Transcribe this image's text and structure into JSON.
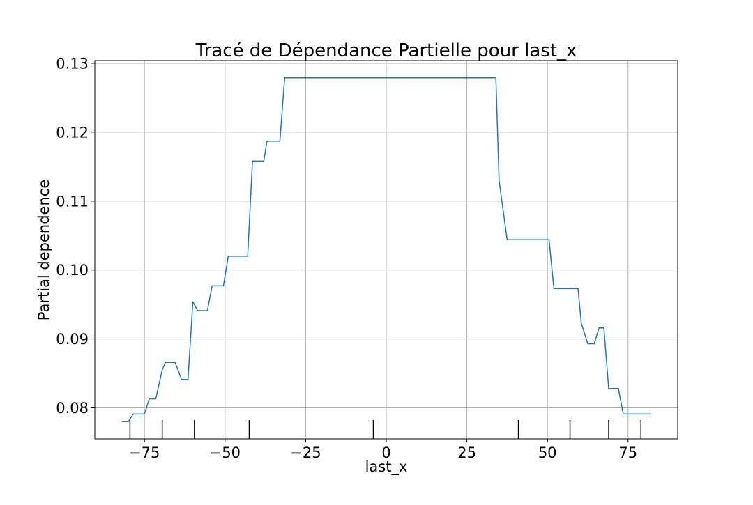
{
  "chart_data": {
    "type": "line",
    "title": "Tracé de Dépendance Partielle pour last_x",
    "xlabel": "last_x",
    "ylabel": "Partial dependence",
    "xlim": [
      -90.4,
      90.4
    ],
    "ylim": [
      0.0755,
      0.1304
    ],
    "grid": true,
    "x_ticks": [
      -75,
      -50,
      -25,
      0,
      25,
      50,
      75
    ],
    "x_tick_labels": [
      "−75",
      "−50",
      "−25",
      "0",
      "25",
      "50",
      "75"
    ],
    "y_ticks": [
      0.08,
      0.09,
      0.1,
      0.11,
      0.12,
      0.13
    ],
    "y_tick_labels": [
      "0.08",
      "0.09",
      "0.10",
      "0.11",
      "0.12",
      "0.13"
    ],
    "series": [
      {
        "color": "#1f77b4",
        "x": [
          -82,
          -80,
          -78.5,
          -75,
          -73.5,
          -71.5,
          -69.5,
          -68.5,
          -65.5,
          -63.5,
          -61.5,
          -60,
          -58.5,
          -55.5,
          -54,
          -50.5,
          -49,
          -43,
          -41.5,
          -38,
          -37,
          -33,
          -31.5,
          34,
          35,
          37.5,
          50.5,
          52,
          59.5,
          60.5,
          62.5,
          64.5,
          66,
          67.5,
          69,
          72,
          73.5,
          82
        ],
        "y": [
          0.078,
          0.078,
          0.0791,
          0.0791,
          0.0813,
          0.0813,
          0.0855,
          0.0866,
          0.0866,
          0.0841,
          0.0841,
          0.0954,
          0.0941,
          0.0941,
          0.0977,
          0.0977,
          0.102,
          0.102,
          0.1158,
          0.1158,
          0.1187,
          0.1187,
          0.1279,
          0.1279,
          0.113,
          0.1044,
          0.1044,
          0.0973,
          0.0973,
          0.0923,
          0.0893,
          0.0893,
          0.0916,
          0.0916,
          0.0828,
          0.0828,
          0.0791,
          0.0791
        ]
      }
    ],
    "deciles": [
      -79.5,
      -69.5,
      -59.5,
      -42.5,
      -4,
      41,
      57,
      69,
      79
    ]
  }
}
